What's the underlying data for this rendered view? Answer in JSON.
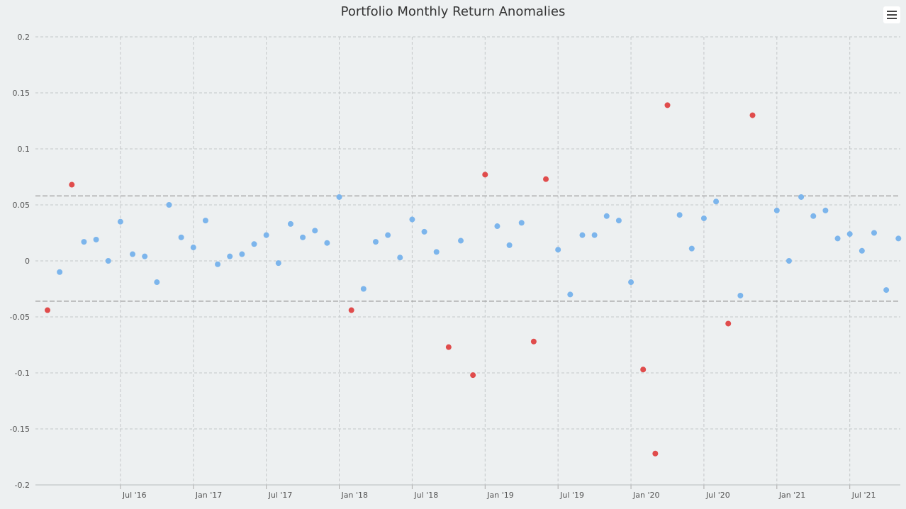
{
  "chart_data": {
    "type": "scatter",
    "title": "Portfolio Monthly Return Anomalies",
    "x_ticks": [
      "Jul '16",
      "Jan '17",
      "Jul '17",
      "Jan '18",
      "Jul '18",
      "Jan '19",
      "Jul '19",
      "Jan '20",
      "Jul '20",
      "Jan '21",
      "Jul '21"
    ],
    "y_ticks": [
      "0.2",
      "0.15",
      "0.1",
      "0.05",
      "0",
      "-0.05",
      "-0.1",
      "-0.15",
      "-0.2"
    ],
    "ylim": [
      -0.2,
      0.2
    ],
    "x_range": [
      "2016-01",
      "2021-09"
    ],
    "grid": true,
    "thresholds": [
      0.058,
      -0.036
    ],
    "series": [
      {
        "color": "#7cb5ec",
        "points": [
          {
            "x": "2016-02",
            "y": -0.01
          },
          {
            "x": "2016-04",
            "y": 0.017
          },
          {
            "x": "2016-05",
            "y": 0.019
          },
          {
            "x": "2016-06",
            "y": 0.0
          },
          {
            "x": "2016-07",
            "y": 0.035
          },
          {
            "x": "2016-08",
            "y": 0.006
          },
          {
            "x": "2016-09",
            "y": 0.004
          },
          {
            "x": "2016-10",
            "y": -0.019
          },
          {
            "x": "2016-11",
            "y": 0.05
          },
          {
            "x": "2016-12",
            "y": 0.021
          },
          {
            "x": "2017-01",
            "y": 0.012
          },
          {
            "x": "2017-02",
            "y": 0.036
          },
          {
            "x": "2017-03",
            "y": -0.003
          },
          {
            "x": "2017-04",
            "y": 0.004
          },
          {
            "x": "2017-05",
            "y": 0.006
          },
          {
            "x": "2017-06",
            "y": 0.015
          },
          {
            "x": "2017-07",
            "y": 0.023
          },
          {
            "x": "2017-08",
            "y": -0.002
          },
          {
            "x": "2017-09",
            "y": 0.033
          },
          {
            "x": "2017-10",
            "y": 0.021
          },
          {
            "x": "2017-11",
            "y": 0.027
          },
          {
            "x": "2017-12",
            "y": 0.016
          },
          {
            "x": "2018-01",
            "y": 0.057
          },
          {
            "x": "2018-03",
            "y": -0.025
          },
          {
            "x": "2018-04",
            "y": 0.017
          },
          {
            "x": "2018-05",
            "y": 0.023
          },
          {
            "x": "2018-06",
            "y": 0.003
          },
          {
            "x": "2018-07",
            "y": 0.037
          },
          {
            "x": "2018-08",
            "y": 0.026
          },
          {
            "x": "2018-09",
            "y": 0.008
          },
          {
            "x": "2018-11",
            "y": 0.018
          },
          {
            "x": "2019-02",
            "y": 0.031
          },
          {
            "x": "2019-03",
            "y": 0.014
          },
          {
            "x": "2019-04",
            "y": 0.034
          },
          {
            "x": "2019-07",
            "y": 0.01
          },
          {
            "x": "2019-08",
            "y": -0.03
          },
          {
            "x": "2019-09",
            "y": 0.023
          },
          {
            "x": "2019-10",
            "y": 0.023
          },
          {
            "x": "2019-11",
            "y": 0.04
          },
          {
            "x": "2019-12",
            "y": 0.036
          },
          {
            "x": "2020-01",
            "y": -0.019
          },
          {
            "x": "2020-05",
            "y": 0.041
          },
          {
            "x": "2020-06",
            "y": 0.011
          },
          {
            "x": "2020-07",
            "y": 0.038
          },
          {
            "x": "2020-08",
            "y": 0.053
          },
          {
            "x": "2020-10",
            "y": -0.031
          },
          {
            "x": "2021-01",
            "y": 0.045
          },
          {
            "x": "2021-02",
            "y": 0.0
          },
          {
            "x": "2021-03",
            "y": 0.057
          },
          {
            "x": "2021-04",
            "y": 0.04
          },
          {
            "x": "2021-05",
            "y": 0.045
          },
          {
            "x": "2021-06",
            "y": 0.02
          },
          {
            "x": "2021-07",
            "y": 0.024
          },
          {
            "x": "2021-08",
            "y": 0.009
          },
          {
            "x": "2021-09",
            "y": 0.025
          },
          {
            "x": "2021-10",
            "y": -0.026
          },
          {
            "x": "2021-11",
            "y": 0.02
          }
        ]
      },
      {
        "color": "#e04c4c",
        "points": [
          {
            "x": "2016-01",
            "y": -0.044
          },
          {
            "x": "2016-03",
            "y": 0.068
          },
          {
            "x": "2018-02",
            "y": -0.044
          },
          {
            "x": "2018-10",
            "y": -0.077
          },
          {
            "x": "2018-12",
            "y": -0.102
          },
          {
            "x": "2019-01",
            "y": 0.077
          },
          {
            "x": "2019-05",
            "y": -0.072
          },
          {
            "x": "2019-06",
            "y": 0.073
          },
          {
            "x": "2020-02",
            "y": -0.097
          },
          {
            "x": "2020-03",
            "y": -0.172
          },
          {
            "x": "2020-04",
            "y": 0.139
          },
          {
            "x": "2020-09",
            "y": -0.056
          },
          {
            "x": "2020-11",
            "y": 0.13
          }
        ]
      }
    ]
  },
  "ui": {
    "menu_icon": "hamburger-menu-icon"
  }
}
